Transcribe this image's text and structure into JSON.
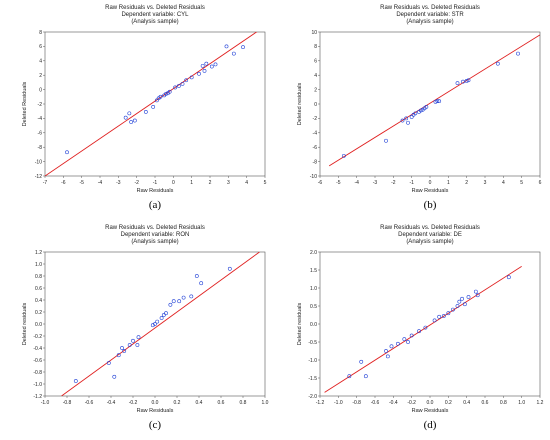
{
  "chart_data": [
    {
      "type": "scatter",
      "panel_label": "(a)",
      "title_lines": [
        "Raw Residuals vs. Deleted Residuals",
        "Dependent variable: CYL",
        "(Analysis sample)"
      ],
      "xlabel": "Raw Residuals",
      "ylabel": "Deleted Residuals",
      "xlim": [
        -7,
        5
      ],
      "ylim": [
        -12,
        8
      ],
      "xticks": [
        -7,
        -6,
        -5,
        -4,
        -3,
        -2,
        -1,
        0,
        1,
        2,
        3,
        4,
        5
      ],
      "yticks": [
        -12,
        -10,
        -8,
        -6,
        -4,
        -2,
        0,
        2,
        4,
        6,
        8
      ],
      "fit_line": [
        [
          -7,
          -12
        ],
        [
          5,
          8.8
        ]
      ],
      "points": [
        [
          -5.8,
          -8.7
        ],
        [
          -2.6,
          -3.9
        ],
        [
          -2.4,
          -3.3
        ],
        [
          -2.3,
          -4.5
        ],
        [
          -2.1,
          -4.3
        ],
        [
          -1.5,
          -3.1
        ],
        [
          -1.1,
          -2.4
        ],
        [
          -0.9,
          -1.5
        ],
        [
          -0.8,
          -1.2
        ],
        [
          -0.7,
          -1.0
        ],
        [
          -0.5,
          -0.8
        ],
        [
          -0.4,
          -0.6
        ],
        [
          -0.3,
          -0.5
        ],
        [
          -0.2,
          -0.3
        ],
        [
          0.1,
          0.3
        ],
        [
          0.3,
          0.5
        ],
        [
          0.5,
          0.8
        ],
        [
          0.7,
          1.3
        ],
        [
          1.0,
          1.7
        ],
        [
          1.4,
          2.2
        ],
        [
          1.6,
          3.3
        ],
        [
          1.7,
          2.6
        ],
        [
          1.8,
          3.6
        ],
        [
          2.1,
          3.2
        ],
        [
          2.3,
          3.5
        ],
        [
          2.9,
          6.0
        ],
        [
          3.3,
          5.0
        ],
        [
          3.8,
          5.9
        ]
      ],
      "point_color": "#1f3fd6",
      "line_color": "#e02020"
    },
    {
      "type": "scatter",
      "panel_label": "(b)",
      "title_lines": [
        "Raw Residuals vs. Deleted Residuals",
        "Dependent variable: STR",
        "(Analysis sample)"
      ],
      "xlabel": "Raw Residuals",
      "ylabel": "Deleted residuals",
      "xlim": [
        -6,
        6
      ],
      "ylim": [
        -10,
        10
      ],
      "xticks": [
        -6,
        -5,
        -4,
        -3,
        -2,
        -1,
        0,
        1,
        2,
        3,
        4,
        5,
        6
      ],
      "yticks": [
        -10,
        -8,
        -6,
        -4,
        -2,
        0,
        2,
        4,
        6,
        8,
        10
      ],
      "fit_line": [
        [
          -5.5,
          -8.6
        ],
        [
          6,
          9.6
        ]
      ],
      "points": [
        [
          -4.7,
          -7.2
        ],
        [
          -2.4,
          -5.1
        ],
        [
          -1.5,
          -2.3
        ],
        [
          -1.3,
          -2.0
        ],
        [
          -1.2,
          -2.6
        ],
        [
          -1.0,
          -1.8
        ],
        [
          -0.9,
          -1.5
        ],
        [
          -0.8,
          -1.3
        ],
        [
          -0.6,
          -1.1
        ],
        [
          -0.5,
          -0.9
        ],
        [
          -0.4,
          -0.8
        ],
        [
          -0.3,
          -0.6
        ],
        [
          -0.2,
          -0.4
        ],
        [
          0.3,
          0.3
        ],
        [
          0.4,
          0.4
        ],
        [
          0.5,
          0.4
        ],
        [
          1.5,
          2.9
        ],
        [
          1.8,
          3.1
        ],
        [
          2.0,
          3.2
        ],
        [
          2.1,
          3.3
        ],
        [
          3.7,
          5.6
        ],
        [
          4.8,
          7.0
        ]
      ],
      "point_color": "#1f3fd6",
      "line_color": "#e02020"
    },
    {
      "type": "scatter",
      "panel_label": "(c)",
      "title_lines": [
        "Raw Residuals vs. Deleted Residuals",
        "Dependent variable: RON",
        "(Analysis sample)"
      ],
      "xlabel": "Raw Residuals",
      "ylabel": "Deleted residuals",
      "xlim": [
        -1.0,
        1.0
      ],
      "ylim": [
        -1.2,
        1.2
      ],
      "xticks": [
        -1.0,
        -0.8,
        -0.6,
        -0.4,
        -0.2,
        0.0,
        0.2,
        0.4,
        0.6,
        0.8,
        1.0
      ],
      "yticks": [
        -1.2,
        -1.0,
        -0.8,
        -0.6,
        -0.4,
        -0.2,
        0.0,
        0.2,
        0.4,
        0.6,
        0.8,
        1.0,
        1.2
      ],
      "fit_line": [
        [
          -0.85,
          -1.2
        ],
        [
          0.95,
          1.2
        ]
      ],
      "points": [
        [
          -0.72,
          -0.95
        ],
        [
          -0.42,
          -0.65
        ],
        [
          -0.37,
          -0.88
        ],
        [
          -0.33,
          -0.52
        ],
        [
          -0.3,
          -0.4
        ],
        [
          -0.28,
          -0.45
        ],
        [
          -0.23,
          -0.35
        ],
        [
          -0.2,
          -0.28
        ],
        [
          -0.16,
          -0.35
        ],
        [
          -0.15,
          -0.22
        ],
        [
          -0.02,
          -0.02
        ],
        [
          0.0,
          0.0
        ],
        [
          0.02,
          0.04
        ],
        [
          0.06,
          0.1
        ],
        [
          0.08,
          0.15
        ],
        [
          0.1,
          0.18
        ],
        [
          0.14,
          0.32
        ],
        [
          0.17,
          0.38
        ],
        [
          0.22,
          0.38
        ],
        [
          0.26,
          0.44
        ],
        [
          0.33,
          0.46
        ],
        [
          0.38,
          0.8
        ],
        [
          0.42,
          0.68
        ],
        [
          0.68,
          0.92
        ]
      ],
      "point_color": "#1f3fd6",
      "line_color": "#e02020"
    },
    {
      "type": "scatter",
      "panel_label": "(d)",
      "title_lines": [
        "Raw Residuals vs. Deleted Residuals",
        "Dependent variable: DE",
        "(Analysis sample)"
      ],
      "xlabel": "Raw Residuals",
      "ylabel": "Deleted residuals",
      "xlim": [
        -1.2,
        1.2
      ],
      "ylim": [
        -2.0,
        2.0
      ],
      "xticks": [
        -1.2,
        -1.0,
        -0.8,
        -0.6,
        -0.4,
        -0.2,
        0.0,
        0.2,
        0.4,
        0.6,
        0.8,
        1.0,
        1.2
      ],
      "yticks": [
        -2.0,
        -1.5,
        -1.0,
        -0.5,
        0.0,
        0.5,
        1.0,
        1.5,
        2.0
      ],
      "fit_line": [
        [
          -1.15,
          -1.9
        ],
        [
          1.0,
          1.6
        ]
      ],
      "points": [
        [
          -0.88,
          -1.45
        ],
        [
          -0.75,
          -1.05
        ],
        [
          -0.7,
          -1.45
        ],
        [
          -0.48,
          -0.75
        ],
        [
          -0.46,
          -0.9
        ],
        [
          -0.42,
          -0.62
        ],
        [
          -0.35,
          -0.55
        ],
        [
          -0.28,
          -0.42
        ],
        [
          -0.24,
          -0.5
        ],
        [
          -0.2,
          -0.32
        ],
        [
          -0.12,
          -0.2
        ],
        [
          -0.05,
          -0.1
        ],
        [
          0.05,
          0.1
        ],
        [
          0.1,
          0.2
        ],
        [
          0.15,
          0.22
        ],
        [
          0.2,
          0.3
        ],
        [
          0.25,
          0.4
        ],
        [
          0.3,
          0.5
        ],
        [
          0.32,
          0.62
        ],
        [
          0.35,
          0.7
        ],
        [
          0.38,
          0.55
        ],
        [
          0.42,
          0.75
        ],
        [
          0.5,
          0.9
        ],
        [
          0.52,
          0.8
        ],
        [
          0.86,
          1.3
        ]
      ],
      "point_color": "#1f3fd6",
      "line_color": "#e02020"
    }
  ]
}
